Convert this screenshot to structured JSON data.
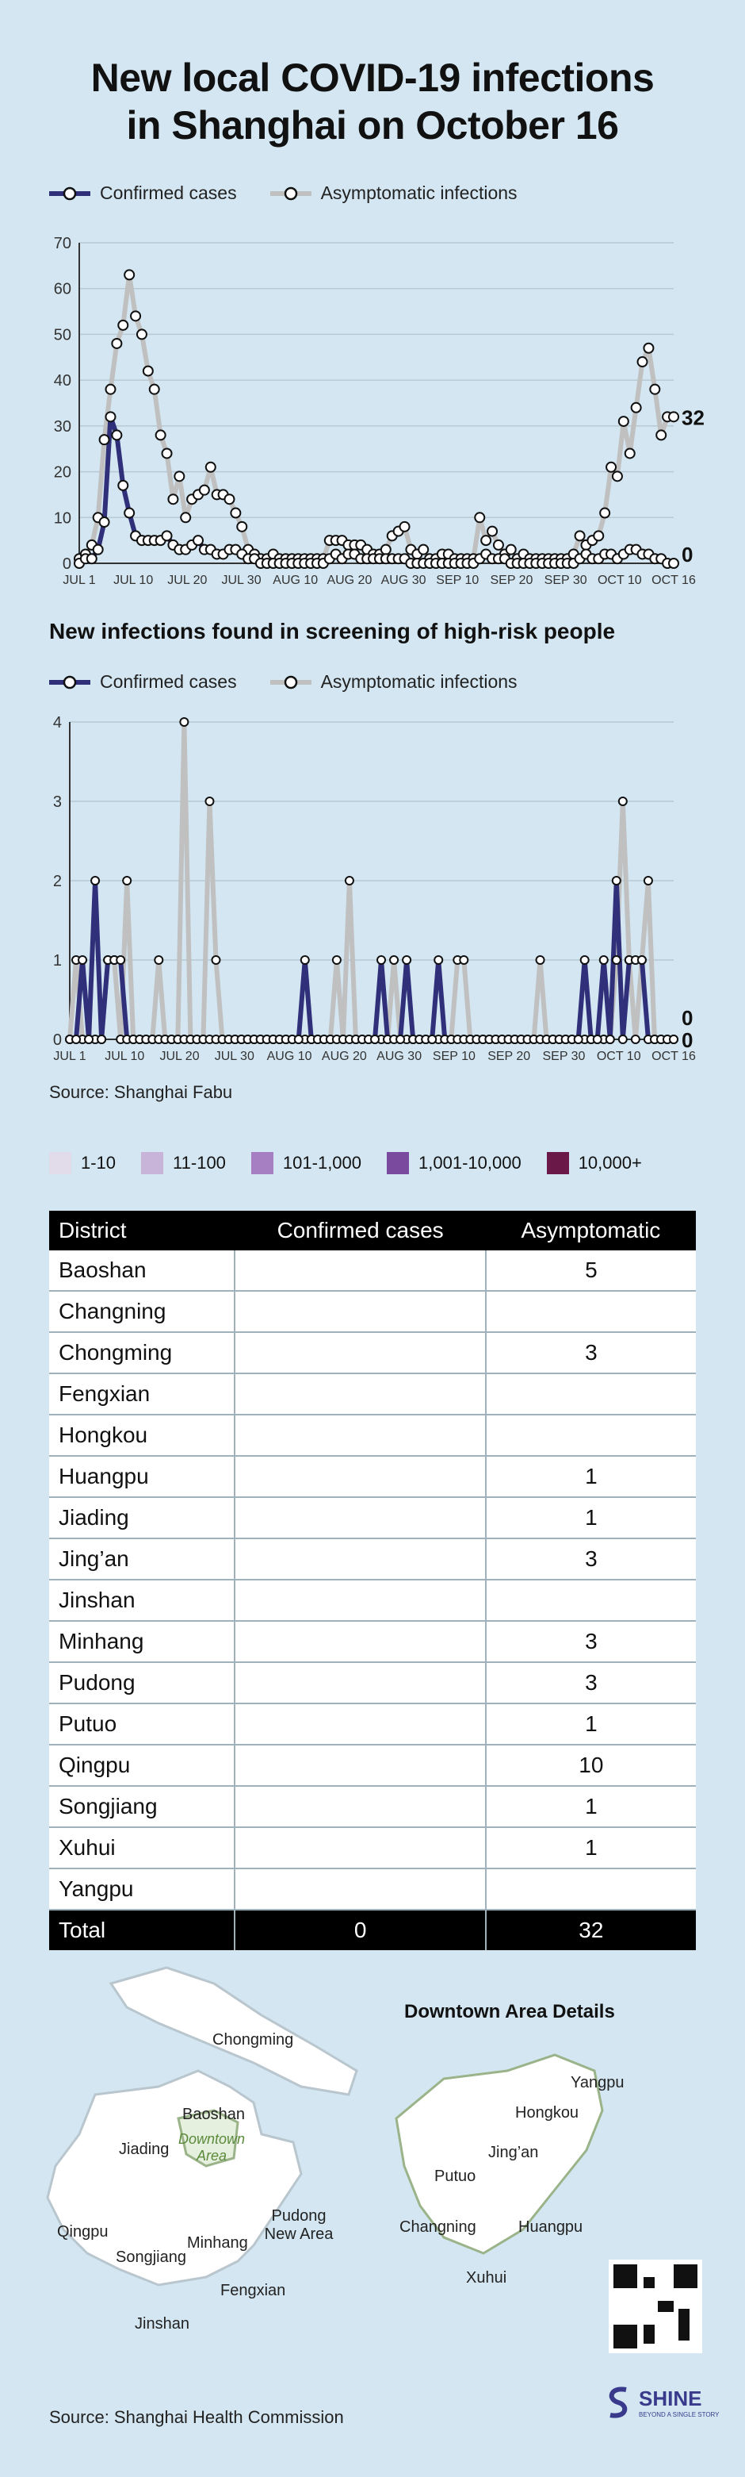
{
  "title": "New local COVID-19 infections in Shanghai on October 16",
  "legend": {
    "confirmed": "Confirmed cases",
    "asymptomatic": "Asymptomatic infections"
  },
  "colors": {
    "confirmed": "#2f2f7a",
    "asymptomatic": "#c0c0c0",
    "background": "#d3e6f1"
  },
  "chart_data": [
    {
      "type": "line",
      "title": "",
      "ylim": [
        0,
        70
      ],
      "yticks": [
        0,
        10,
        20,
        30,
        40,
        50,
        60,
        70
      ],
      "xticks": [
        "JUL 1",
        "JUL 10",
        "JUL 20",
        "JUL 30",
        "AUG 10",
        "AUG 20",
        "AUG 30",
        "SEP 10",
        "SEP 20",
        "SEP 30",
        "OCT 10",
        "OCT 16"
      ],
      "end_labels": {
        "asymptomatic": "32",
        "confirmed": "0"
      },
      "series": [
        {
          "name": "Asymptomatic infections",
          "values": [
            1,
            2,
            4,
            10,
            27,
            38,
            48,
            52,
            63,
            54,
            50,
            42,
            38,
            28,
            24,
            14,
            19,
            10,
            14,
            15,
            16,
            21,
            15,
            15,
            14,
            11,
            8,
            3,
            2,
            1,
            1,
            2,
            1,
            1,
            1,
            1,
            1,
            1,
            1,
            1,
            5,
            5,
            5,
            4,
            4,
            4,
            3,
            2,
            2,
            3,
            6,
            7,
            8,
            3,
            2,
            3,
            1,
            1,
            2,
            2,
            1,
            1,
            1,
            1,
            10,
            5,
            7,
            4,
            2,
            3,
            1,
            2,
            1,
            1,
            1,
            1,
            1,
            1,
            1,
            2,
            6,
            4,
            5,
            6,
            11,
            21,
            19,
            31,
            24,
            34,
            44,
            47,
            38,
            28,
            32,
            32
          ]
        },
        {
          "name": "Confirmed cases",
          "values": [
            0,
            1,
            1,
            3,
            9,
            32,
            28,
            17,
            11,
            6,
            5,
            5,
            5,
            5,
            6,
            4,
            3,
            3,
            4,
            5,
            3,
            3,
            2,
            2,
            3,
            3,
            2,
            1,
            1,
            0,
            0,
            0,
            0,
            0,
            0,
            0,
            0,
            0,
            0,
            0,
            1,
            2,
            1,
            2,
            2,
            1,
            1,
            1,
            1,
            1,
            1,
            1,
            1,
            0,
            0,
            0,
            0,
            0,
            0,
            0,
            0,
            0,
            0,
            0,
            1,
            2,
            1,
            1,
            1,
            0,
            0,
            0,
            0,
            0,
            0,
            0,
            0,
            0,
            0,
            0,
            1,
            2,
            1,
            1,
            2,
            2,
            1,
            2,
            3,
            3,
            2,
            2,
            1,
            1,
            0,
            0
          ]
        }
      ]
    },
    {
      "type": "line",
      "title": "New infections found in screening of high-risk people",
      "ylim": [
        0,
        4
      ],
      "yticks": [
        0,
        1,
        2,
        3,
        4
      ],
      "xticks": [
        "JUL 1",
        "JUL 10",
        "JUL 20",
        "JUL 30",
        "AUG 10",
        "AUG 20",
        "AUG 30",
        "SEP 10",
        "SEP 20",
        "SEP 30",
        "OCT 10",
        "OCT 16"
      ],
      "end_labels": {
        "asymptomatic": "0",
        "confirmed": "0"
      },
      "series": [
        {
          "name": "Asymptomatic infections",
          "values": [
            0,
            1,
            0,
            0,
            0,
            0,
            1,
            1,
            0,
            2,
            0,
            0,
            0,
            0,
            1,
            0,
            0,
            0,
            4,
            0,
            0,
            0,
            3,
            1,
            0,
            0,
            0,
            0,
            0,
            0,
            0,
            0,
            0,
            0,
            0,
            0,
            0,
            0,
            0,
            0,
            0,
            0,
            1,
            0,
            2,
            0,
            0,
            0,
            0,
            0,
            0,
            1,
            0,
            0,
            0,
            0,
            0,
            0,
            0,
            0,
            0,
            1,
            1,
            0,
            0,
            0,
            0,
            0,
            0,
            0,
            0,
            0,
            0,
            0,
            1,
            0,
            0,
            0,
            0,
            0,
            0,
            0,
            0,
            0,
            0,
            0,
            1,
            3,
            1,
            0,
            1,
            2,
            0,
            0,
            0,
            0
          ]
        },
        {
          "name": "Confirmed cases",
          "values": [
            0,
            0,
            1,
            0,
            2,
            0,
            1,
            1,
            1,
            0,
            0,
            0,
            0,
            0,
            0,
            0,
            0,
            0,
            0,
            0,
            0,
            0,
            0,
            0,
            0,
            0,
            0,
            0,
            0,
            0,
            0,
            0,
            0,
            0,
            0,
            0,
            0,
            1,
            0,
            0,
            0,
            0,
            0,
            0,
            0,
            0,
            0,
            0,
            0,
            1,
            0,
            0,
            0,
            1,
            0,
            0,
            0,
            0,
            1,
            0,
            0,
            0,
            0,
            0,
            0,
            0,
            0,
            0,
            0,
            0,
            0,
            0,
            0,
            0,
            0,
            0,
            0,
            0,
            0,
            0,
            0,
            1,
            0,
            0,
            1,
            0,
            2,
            0,
            1,
            1,
            1,
            0,
            0,
            0,
            0,
            0
          ]
        }
      ]
    }
  ],
  "source1": "Source: Shanghai Fabu",
  "scale": [
    {
      "label": "1-10",
      "color": "#e2dbea"
    },
    {
      "label": "11-100",
      "color": "#c8b4d8"
    },
    {
      "label": "101-1,000",
      "color": "#a57fc2"
    },
    {
      "label": "1,001-10,000",
      "color": "#7a4a9e"
    },
    {
      "label": "10,000+",
      "color": "#6a1848"
    }
  ],
  "table": {
    "headers": [
      "District",
      "Confirmed cases",
      "Asymptomatic"
    ],
    "rows": [
      [
        "Baoshan",
        "",
        "5"
      ],
      [
        "Changning",
        "",
        ""
      ],
      [
        "Chongming",
        "",
        "3"
      ],
      [
        "Fengxian",
        "",
        ""
      ],
      [
        "Hongkou",
        "",
        ""
      ],
      [
        "Huangpu",
        "",
        "1"
      ],
      [
        "Jiading",
        "",
        "1"
      ],
      [
        "Jing’an",
        "",
        "3"
      ],
      [
        "Jinshan",
        "",
        ""
      ],
      [
        "Minhang",
        "",
        "3"
      ],
      [
        "Pudong",
        "",
        "3"
      ],
      [
        "Putuo",
        "",
        "1"
      ],
      [
        "Qingpu",
        "",
        "10"
      ],
      [
        "Songjiang",
        "",
        "1"
      ],
      [
        "Xuhui",
        "",
        "1"
      ],
      [
        "Yangpu",
        "",
        ""
      ]
    ],
    "total": [
      "Total",
      "0",
      "32"
    ]
  },
  "map": {
    "downtown_title": "Downtown Area Details",
    "labels": {
      "chongming": "Chongming",
      "baoshan": "Baoshan",
      "jiading": "Jiading",
      "downtown": "Downtown Area",
      "qingpu": "Qingpu",
      "songjiang": "Songjiang",
      "minhang": "Minhang",
      "pudong": "Pudong New Area",
      "fengxian": "Fengxian",
      "jinshan": "Jinshan",
      "yangpu": "Yangpu",
      "hongkou": "Hongkou",
      "jingan": "Jing’an",
      "putuo": "Putuo",
      "changning": "Changning",
      "huangpu": "Huangpu",
      "xuhui": "Xuhui"
    }
  },
  "source2": "Source: Shanghai Health Commission",
  "brand": {
    "name": "SHINE",
    "tagline": "BEYOND A SINGLE STORY"
  }
}
